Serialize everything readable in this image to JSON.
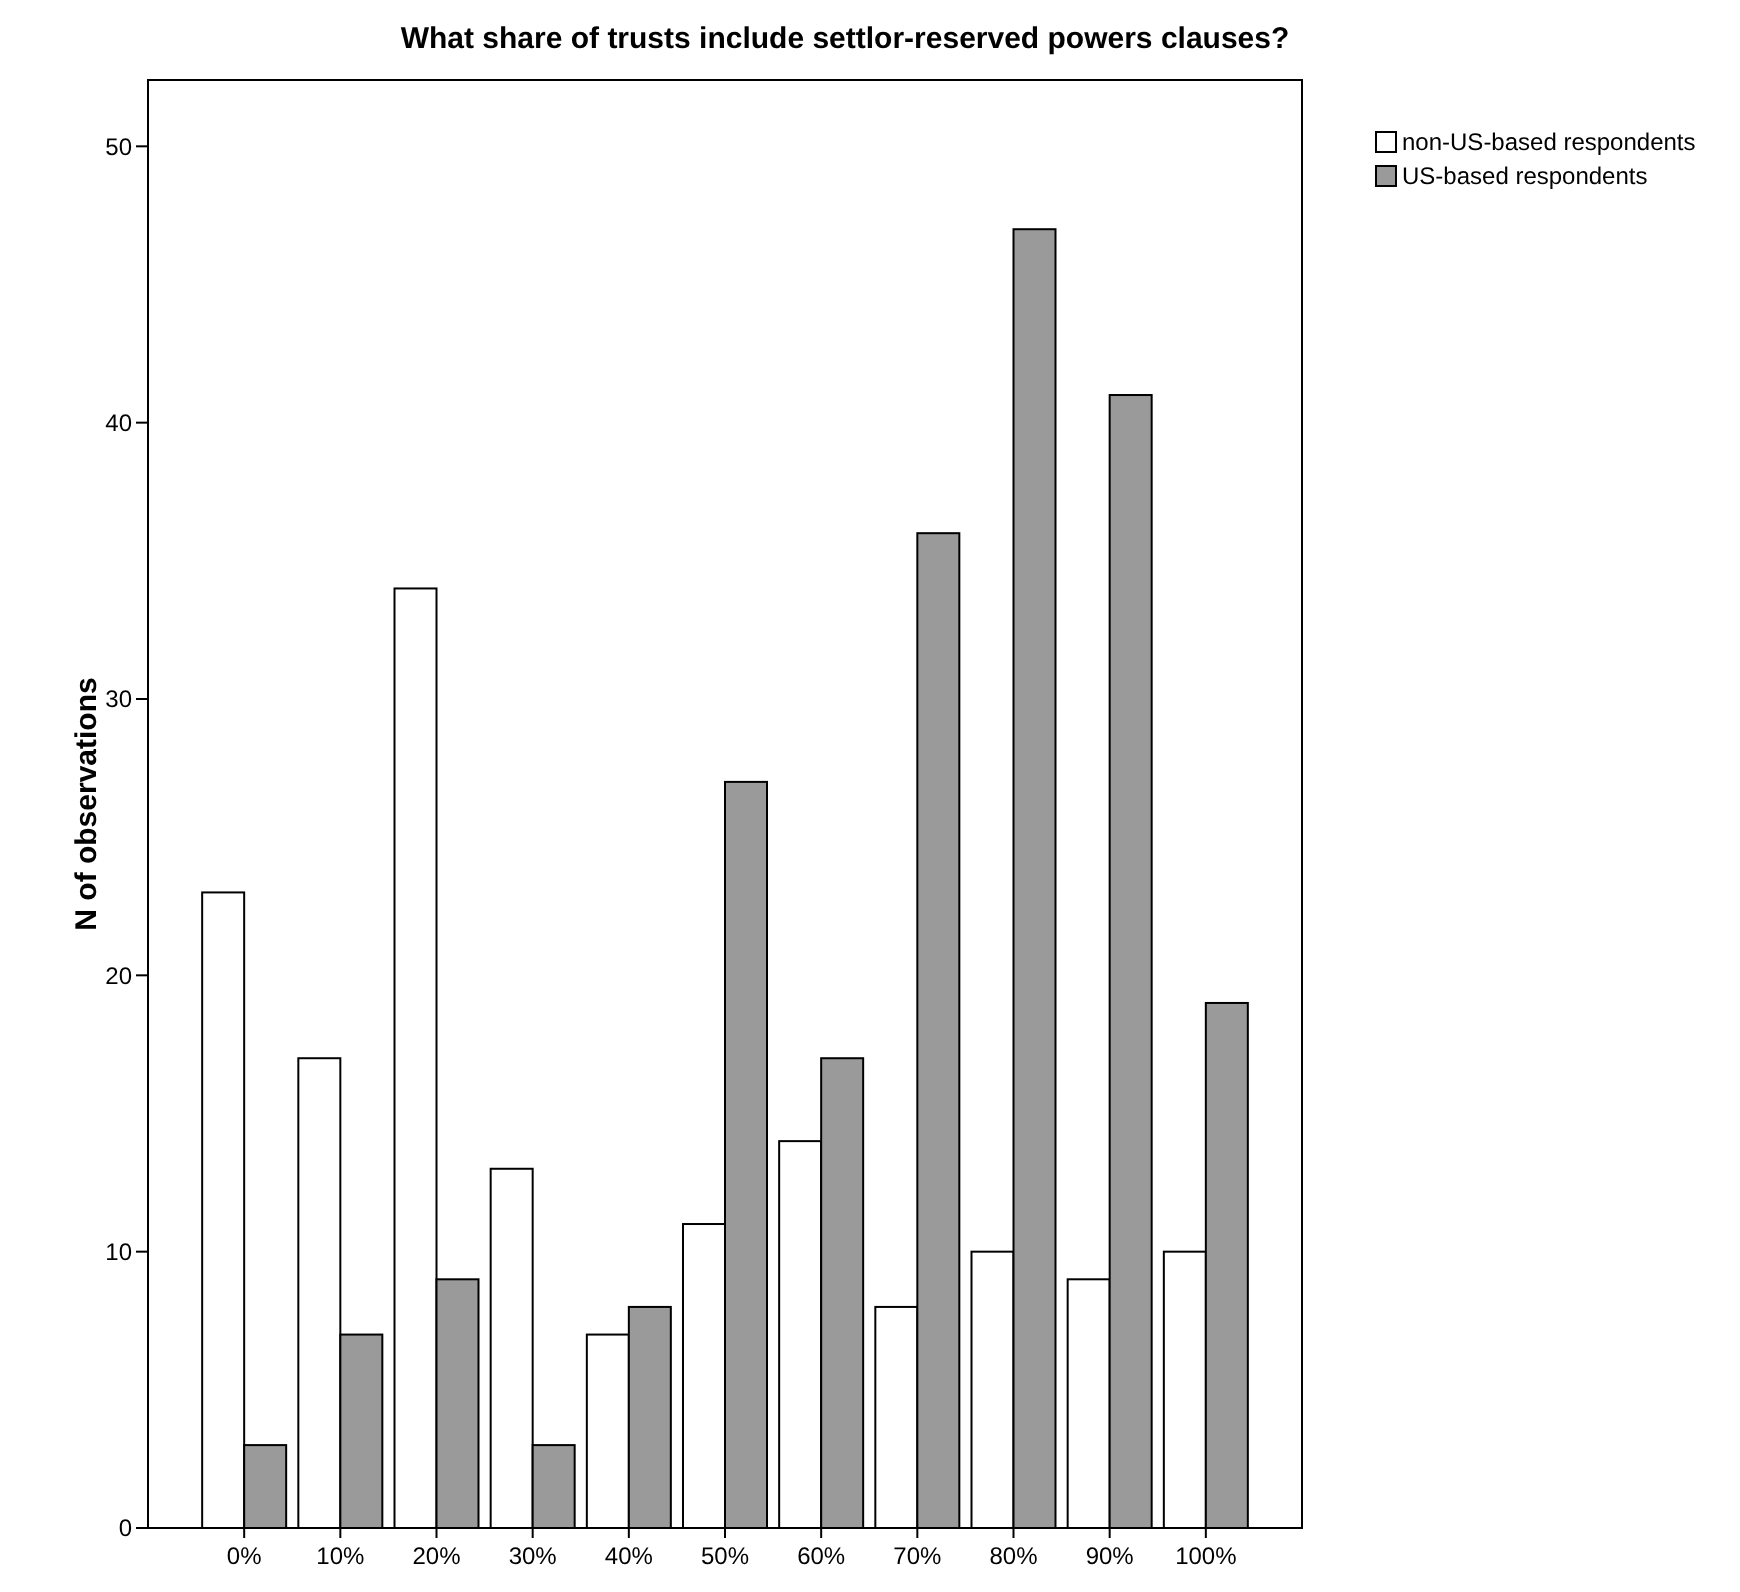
{
  "chart_data": {
    "type": "bar",
    "title": "What share of trusts include settlor-reserved powers clauses?",
    "ylabel": "N of observations",
    "categories": [
      "0%",
      "10%",
      "20%",
      "30%",
      "40%",
      "50%",
      "60%",
      "70%",
      "80%",
      "90%",
      "100%"
    ],
    "series": [
      {
        "name": "non-US-based respondents",
        "color": "#ffffff",
        "values": [
          23,
          17,
          34,
          13,
          7,
          11,
          14,
          8,
          10,
          9,
          10
        ]
      },
      {
        "name": "US-based respondents",
        "color": "#9a9a9a",
        "values": [
          3,
          7,
          9,
          3,
          8,
          27,
          17,
          36,
          47,
          41,
          19
        ]
      }
    ],
    "ylim": [
      0,
      52.4
    ],
    "yticks": [
      0,
      10,
      20,
      30,
      40,
      50
    ],
    "grid": false,
    "legend": "top right"
  }
}
